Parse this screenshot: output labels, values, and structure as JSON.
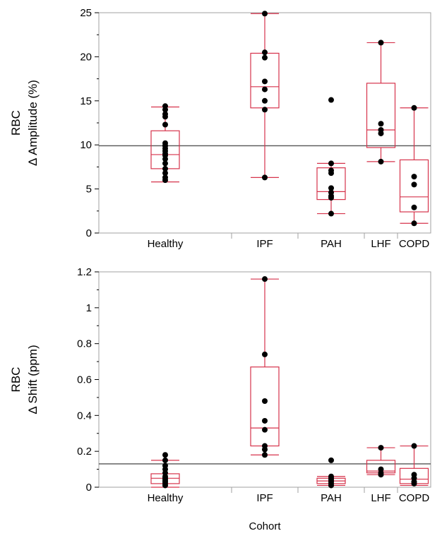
{
  "colors": {
    "box": "#d6334b",
    "point": "#000000",
    "frame": "#a0a0a0",
    "refline": "#555555"
  },
  "xlabel": "Cohort",
  "chart_data": [
    {
      "type": "box",
      "ylabel_line1": "RBC",
      "ylabel_line2": "Δ Amplitude (%)",
      "ylim": [
        0,
        25
      ],
      "yticks": [
        0,
        5,
        10,
        15,
        20,
        25
      ],
      "ytick_labels": [
        "0",
        "5",
        "10",
        "15",
        "20",
        "25"
      ],
      "reference_line": 9.9,
      "categories": [
        "Healthy",
        "IPF",
        "PAH",
        "LHF",
        "COPD"
      ],
      "category_weights": [
        4,
        2,
        2,
        1,
        1
      ],
      "boxes": [
        {
          "min": 5.8,
          "q1": 7.3,
          "median": 8.9,
          "q3": 11.6,
          "max": 14.3
        },
        {
          "min": 6.3,
          "q1": 14.2,
          "median": 16.6,
          "q3": 20.4,
          "max": 24.9
        },
        {
          "min": 2.2,
          "q1": 3.8,
          "median": 4.7,
          "q3": 7.4,
          "max": 7.9
        },
        {
          "min": 8.1,
          "q1": 9.7,
          "median": 11.7,
          "q3": 17.0,
          "max": 21.6
        },
        {
          "min": 1.1,
          "q1": 2.4,
          "median": 4.1,
          "q3": 8.3,
          "max": 14.2
        }
      ],
      "points": [
        [
          14.4,
          14.0,
          13.5,
          13.2,
          12.3,
          10.2,
          9.9,
          9.6,
          9.3,
          9.0,
          8.8,
          8.4,
          7.9,
          7.3,
          6.8,
          6.3,
          6.0
        ],
        [
          24.9,
          20.5,
          19.9,
          17.2,
          16.3,
          15.0,
          14.0,
          6.3
        ],
        [
          15.1,
          7.9,
          7.1,
          6.8,
          5.1,
          4.6,
          4.2,
          4.0,
          2.2
        ],
        [
          21.6,
          12.4,
          11.7,
          11.3,
          8.1
        ],
        [
          14.2,
          6.4,
          5.5,
          2.9,
          1.1
        ]
      ]
    },
    {
      "type": "box",
      "ylabel_line1": "RBC",
      "ylabel_line2": "Δ Shift (ppm)",
      "ylim": [
        0,
        1.2
      ],
      "yticks": [
        0,
        0.2,
        0.4,
        0.6,
        0.8,
        1.0,
        1.2
      ],
      "ytick_labels": [
        "0",
        "0.2",
        "0.4",
        "0.6",
        "0.8",
        "1",
        "1.2"
      ],
      "reference_line": 0.13,
      "categories": [
        "Healthy",
        "IPF",
        "PAH",
        "LHF",
        "COPD"
      ],
      "category_weights": [
        4,
        2,
        2,
        1,
        1
      ],
      "boxes": [
        {
          "min": 0.0,
          "q1": 0.02,
          "median": 0.05,
          "q3": 0.075,
          "max": 0.15
        },
        {
          "min": 0.18,
          "q1": 0.23,
          "median": 0.33,
          "q3": 0.67,
          "max": 1.16
        },
        {
          "min": 0.01,
          "q1": 0.02,
          "median": 0.035,
          "q3": 0.05,
          "max": 0.06
        },
        {
          "min": 0.07,
          "q1": 0.08,
          "median": 0.09,
          "q3": 0.15,
          "max": 0.22
        },
        {
          "min": 0.01,
          "q1": 0.02,
          "median": 0.045,
          "q3": 0.105,
          "max": 0.23
        }
      ],
      "points": [
        [
          0.18,
          0.15,
          0.12,
          0.1,
          0.08,
          0.06,
          0.05,
          0.04,
          0.03,
          0.02,
          0.01
        ],
        [
          1.16,
          0.74,
          0.48,
          0.37,
          0.32,
          0.23,
          0.21,
          0.18
        ],
        [
          0.15,
          0.06,
          0.05,
          0.04,
          0.03,
          0.02,
          0.01
        ],
        [
          0.22,
          0.1,
          0.08,
          0.07
        ],
        [
          0.23,
          0.07,
          0.05,
          0.03,
          0.02
        ]
      ]
    }
  ]
}
